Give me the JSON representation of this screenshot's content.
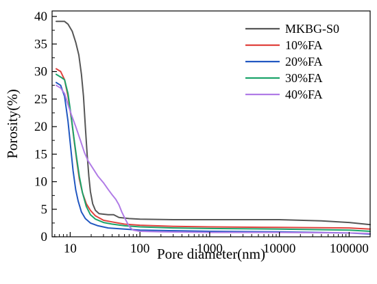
{
  "chart_data": {
    "type": "line",
    "xlabel": "Pore diameter(nm)",
    "ylabel": "Porosity(%)",
    "xscale": "log",
    "xlim": [
      5.5,
      200000
    ],
    "ylim": [
      0,
      41
    ],
    "x_ticks": [
      {
        "value": 10,
        "label": "10"
      },
      {
        "value": 100,
        "label": "100"
      },
      {
        "value": 1000,
        "label": "1000"
      },
      {
        "value": 10000,
        "label": "10000"
      },
      {
        "value": 100000,
        "label": "100000"
      }
    ],
    "y_ticks": [
      {
        "value": 0,
        "label": "0"
      },
      {
        "value": 5,
        "label": "5"
      },
      {
        "value": 10,
        "label": "10"
      },
      {
        "value": 15,
        "label": "15"
      },
      {
        "value": 20,
        "label": "20"
      },
      {
        "value": 25,
        "label": "25"
      },
      {
        "value": 30,
        "label": "30"
      },
      {
        "value": 35,
        "label": "35"
      },
      {
        "value": 40,
        "label": "40"
      }
    ],
    "grid": false,
    "legend_position": "top-right",
    "series": [
      {
        "name": "MKBG-S0",
        "color": "#555555",
        "points": [
          [
            6.3,
            39.1
          ],
          [
            8.3,
            39.1
          ],
          [
            9.3,
            38.6
          ],
          [
            10.7,
            37.3
          ],
          [
            12,
            35.3
          ],
          [
            13.3,
            33
          ],
          [
            14.5,
            29.5
          ],
          [
            15.5,
            25.5
          ],
          [
            16.5,
            20
          ],
          [
            17.5,
            15
          ],
          [
            18.5,
            11
          ],
          [
            19.5,
            8.2
          ],
          [
            21,
            6
          ],
          [
            23,
            4.8
          ],
          [
            26,
            4.2
          ],
          [
            35,
            4
          ],
          [
            42,
            4
          ],
          [
            50,
            3.5
          ],
          [
            70,
            3.3
          ],
          [
            100,
            3.2
          ],
          [
            300,
            3.1
          ],
          [
            1000,
            3.1
          ],
          [
            10000,
            3.1
          ],
          [
            40000,
            2.9
          ],
          [
            100000,
            2.6
          ],
          [
            200000,
            2.2
          ]
        ]
      },
      {
        "name": "10%FA",
        "color": "#e0413c",
        "points": [
          [
            6.3,
            30.5
          ],
          [
            7.3,
            30
          ],
          [
            8.3,
            28.5
          ],
          [
            9.3,
            25.5
          ],
          [
            10.5,
            21
          ],
          [
            11.5,
            17
          ],
          [
            12.5,
            13.5
          ],
          [
            13.5,
            10.5
          ],
          [
            15,
            8
          ],
          [
            17,
            6
          ],
          [
            19.5,
            4.8
          ],
          [
            23,
            3.8
          ],
          [
            30,
            3
          ],
          [
            40,
            2.7
          ],
          [
            60,
            2.3
          ],
          [
            100,
            2.1
          ],
          [
            300,
            1.9
          ],
          [
            1000,
            1.8
          ],
          [
            10000,
            1.7
          ],
          [
            100000,
            1.6
          ],
          [
            200000,
            1.4
          ]
        ]
      },
      {
        "name": "20%FA",
        "color": "#2157c1",
        "points": [
          [
            6.3,
            28
          ],
          [
            7.3,
            27.5
          ],
          [
            8.3,
            25.5
          ],
          [
            9.3,
            21
          ],
          [
            10.2,
            16
          ],
          [
            11,
            12
          ],
          [
            12,
            8.5
          ],
          [
            13,
            6.5
          ],
          [
            14.5,
            4.5
          ],
          [
            16.5,
            3.3
          ],
          [
            19.5,
            2.5
          ],
          [
            25,
            2
          ],
          [
            35,
            1.6
          ],
          [
            60,
            1.4
          ],
          [
            100,
            1.2
          ],
          [
            300,
            1.1
          ],
          [
            1000,
            1
          ],
          [
            10000,
            0.9
          ],
          [
            100000,
            0.7
          ],
          [
            200000,
            0.5
          ]
        ]
      },
      {
        "name": "30%FA",
        "color": "#1aa36a",
        "points": [
          [
            6.3,
            29.5
          ],
          [
            7.3,
            29
          ],
          [
            8.3,
            28.5
          ],
          [
            9.3,
            26
          ],
          [
            10.3,
            22
          ],
          [
            11.3,
            18
          ],
          [
            12.3,
            14.5
          ],
          [
            13.5,
            11
          ],
          [
            15,
            8
          ],
          [
            17,
            5.5
          ],
          [
            19.5,
            4
          ],
          [
            23,
            3.2
          ],
          [
            30,
            2.6
          ],
          [
            40,
            2.3
          ],
          [
            60,
            2
          ],
          [
            100,
            1.8
          ],
          [
            300,
            1.6
          ],
          [
            1000,
            1.5
          ],
          [
            10000,
            1.4
          ],
          [
            100000,
            1.2
          ],
          [
            200000,
            1
          ]
        ]
      },
      {
        "name": "40%FA",
        "color": "#b07be6",
        "points": [
          [
            6.3,
            27.5
          ],
          [
            7.3,
            27
          ],
          [
            8.3,
            26
          ],
          [
            9.3,
            24
          ],
          [
            10.5,
            22
          ],
          [
            12,
            20
          ],
          [
            14,
            17.5
          ],
          [
            16,
            15.3
          ],
          [
            18,
            13.8
          ],
          [
            21,
            12.5
          ],
          [
            25,
            11
          ],
          [
            30,
            9.8
          ],
          [
            35,
            8.6
          ],
          [
            40,
            7.6
          ],
          [
            45,
            6.8
          ],
          [
            50,
            5.8
          ],
          [
            55,
            4.5
          ],
          [
            60,
            3.5
          ],
          [
            66,
            2.5
          ],
          [
            72,
            1.7
          ],
          [
            80,
            1.2
          ],
          [
            100,
            1
          ],
          [
            200,
            0.9
          ],
          [
            1000,
            0.8
          ],
          [
            10000,
            0.8
          ],
          [
            100000,
            0.7
          ],
          [
            200000,
            0.6
          ]
        ]
      }
    ]
  }
}
